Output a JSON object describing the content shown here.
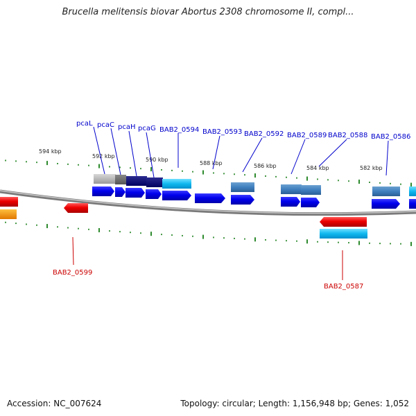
{
  "title": "Brucella melitensis biovar Abortus 2308 chromosome II, compl...",
  "accession": "Accession: NC_007624",
  "summary": "Topology: circular; Length: 1,156,948 bp; Genes: 1,052",
  "colors": {
    "backbone": "#8a8a8a",
    "tick": "#2d8a2d",
    "gene_label_forward": "#0000cc",
    "gene_label_reverse": "#cc0000",
    "kbp_label": "#222222"
  },
  "kbp_labels": [
    "594 kbp",
    "592 kbp",
    "590 kbp",
    "588 kbp",
    "586 kbp",
    "584 kbp",
    "582 kbp"
  ],
  "gene_labels_forward": [
    "pcaL",
    "pcaC",
    "pcaH",
    "pcaG",
    "BAB2_0594",
    "BAB2_0593",
    "BAB2_0592",
    "BAB2_0589",
    "BAB2_0588",
    "BAB2_0586"
  ],
  "gene_labels_reverse": [
    "BAB2_0599",
    "BAB2_0587"
  ]
}
